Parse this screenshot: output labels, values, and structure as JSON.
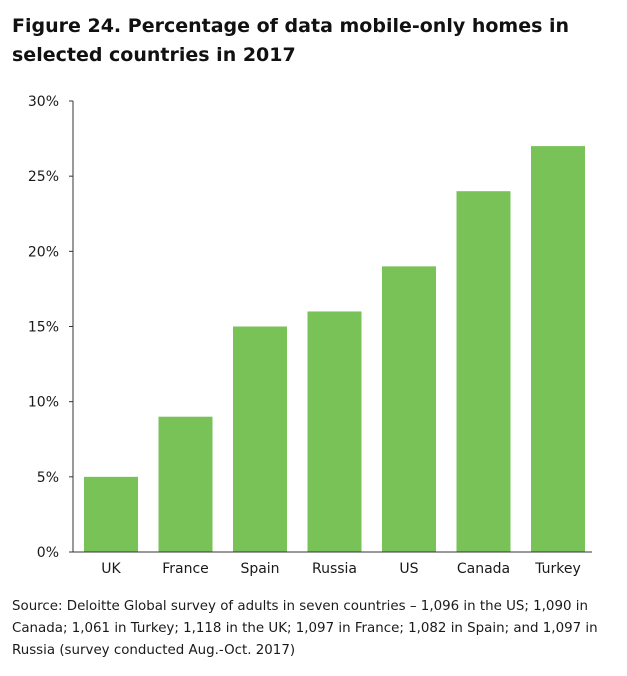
{
  "title": "Figure 24. Percentage of data mobile-only homes in selected countries in 2017",
  "source": "Source: Deloitte Global survey of adults in seven countries – 1,096 in the US; 1,090 in Canada; 1,061 in Turkey; 1,118 in the UK; 1,097 in France; 1,082 in Spain; and 1,097 in Russia (survey conducted Aug.-Oct. 2017)",
  "bar_color": "#78c257",
  "axis_color": "#333333",
  "chart_data": {
    "type": "bar",
    "title": "Figure 24. Percentage of data mobile-only homes in selected countries in 2017",
    "xlabel": "",
    "ylabel": "",
    "categories": [
      "UK",
      "France",
      "Spain",
      "Russia",
      "US",
      "Canada",
      "Turkey"
    ],
    "values": [
      5,
      9,
      15,
      16,
      19,
      24,
      27
    ],
    "ylim": [
      0,
      30
    ],
    "yticks": [
      0,
      5,
      10,
      15,
      20,
      25,
      30
    ],
    "ytick_labels": [
      "0%",
      "5%",
      "10%",
      "15%",
      "20%",
      "25%",
      "30%"
    ],
    "grid": false,
    "legend": "none"
  }
}
